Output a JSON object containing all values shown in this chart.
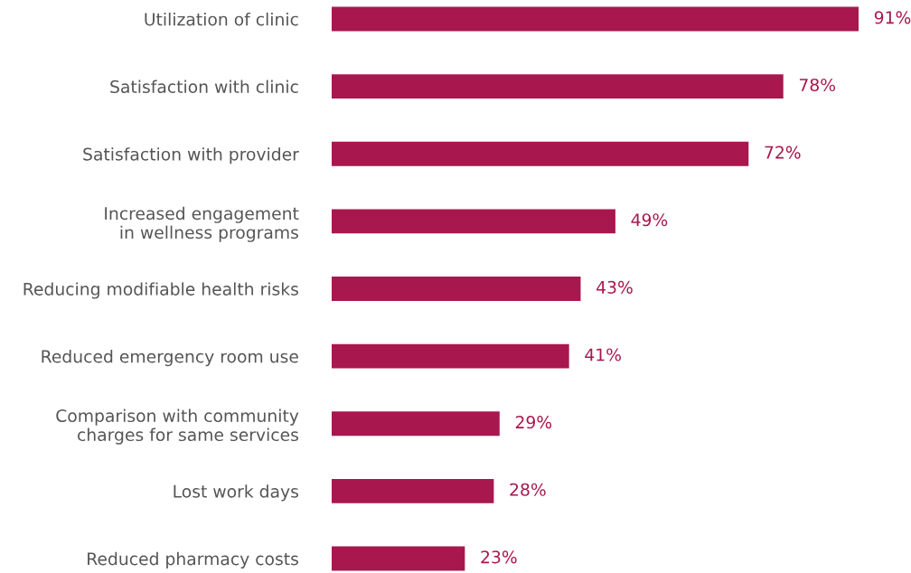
{
  "chart_data": {
    "type": "bar",
    "orientation": "horizontal",
    "categories": [
      "Utilization of clinic",
      "Satisfaction with clinic",
      "Satisfaction with provider",
      "Increased engagement\nin wellness programs",
      "Reducing modifiable health risks",
      "Reduced emergency room use",
      "Comparison with community\ncharges for same services",
      "Lost work days",
      "Reduced pharmacy costs"
    ],
    "values": [
      91,
      78,
      72,
      49,
      43,
      41,
      29,
      28,
      23
    ],
    "value_labels": [
      "91%",
      "78%",
      "72%",
      "49%",
      "43%",
      "41%",
      "29%",
      "28%",
      "23%"
    ],
    "color": "#a8174e",
    "tick_labels": "y",
    "grid": false,
    "legend": false
  }
}
